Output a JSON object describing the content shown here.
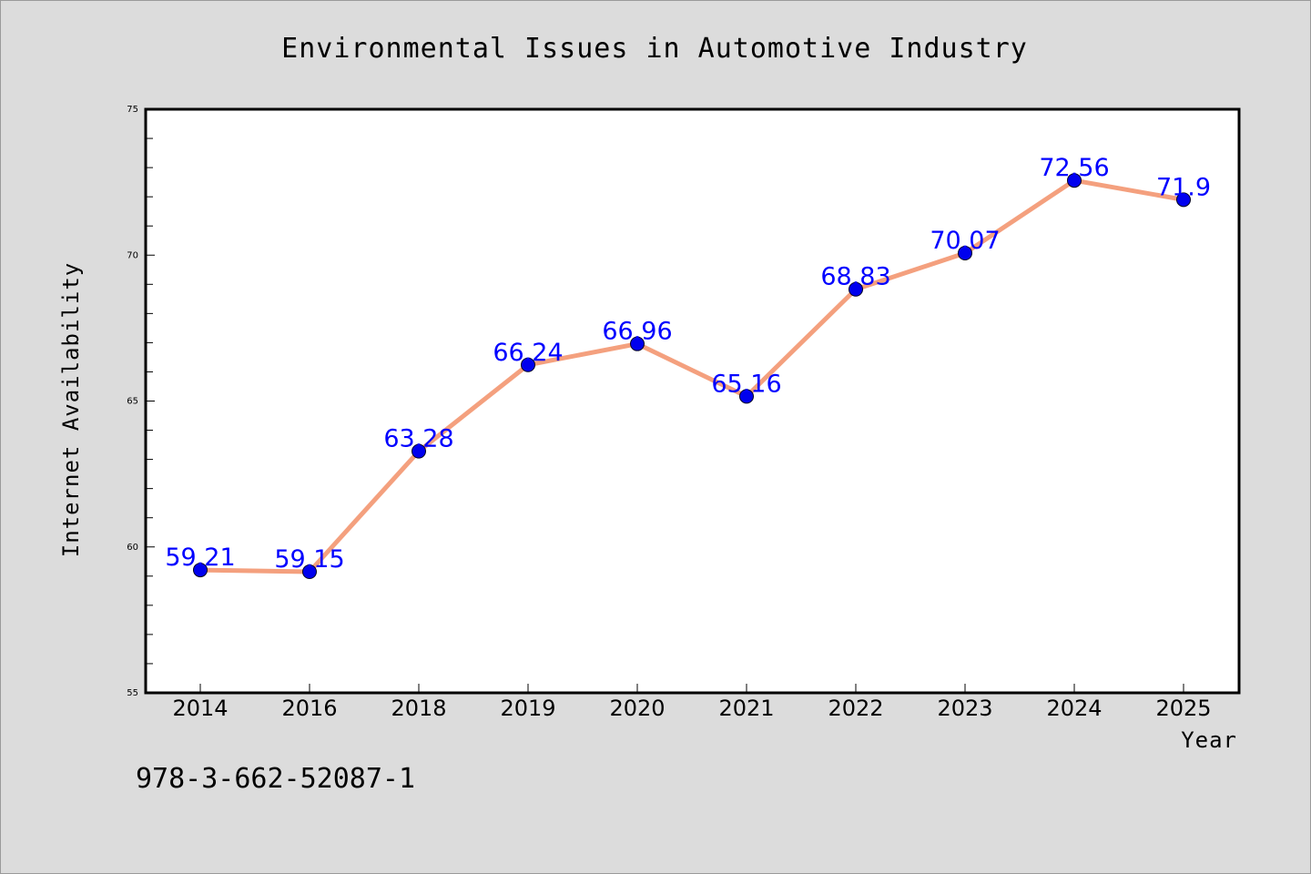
{
  "chart_data": {
    "type": "line",
    "title": "Environmental Issues in Automotive Industry",
    "xlabel": "Year",
    "ylabel": "Internet Availability",
    "categories": [
      "2014",
      "2016",
      "2018",
      "2019",
      "2020",
      "2021",
      "2022",
      "2023",
      "2024",
      "2025"
    ],
    "values": [
      59.21,
      59.15,
      63.28,
      66.24,
      66.96,
      65.16,
      68.83,
      70.07,
      72.56,
      71.9
    ],
    "data_labels": [
      "59.21",
      "59.15",
      "63.28",
      "66.24",
      "66.96",
      "65.16",
      "68.83",
      "70.07",
      "72.56",
      "71.9"
    ],
    "ylim": [
      55,
      75
    ],
    "yticks": [
      55,
      60,
      65,
      70,
      75
    ],
    "ytick_labels": [
      "55",
      "60",
      "65",
      "70",
      "75"
    ],
    "grid": false,
    "line_color": "#f4a07e",
    "marker_color": "#0000ee",
    "data_label_color": "#0000ff",
    "annotation": "978-3-662-52087-1"
  },
  "colors": {
    "background": "#dcdcdc",
    "plot_background": "#ffffff"
  }
}
